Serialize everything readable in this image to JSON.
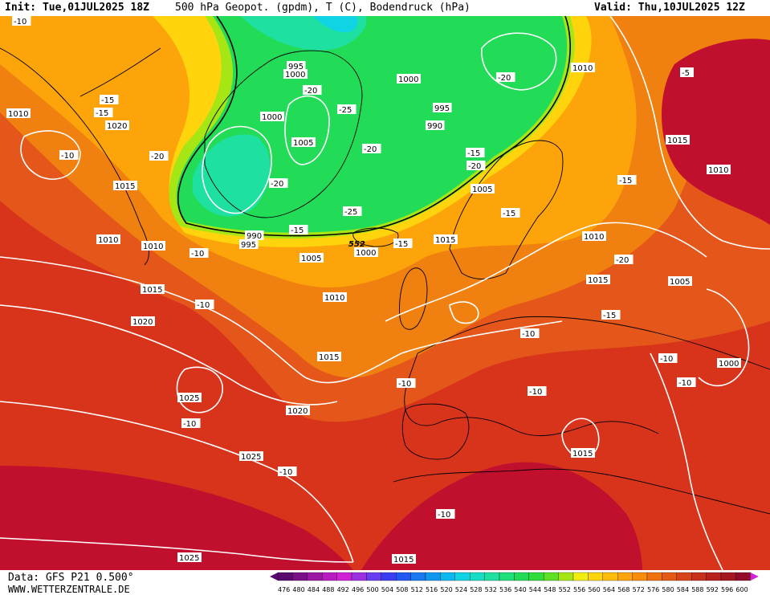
{
  "header": {
    "init": "Init: Tue,01JUL2025 18Z",
    "title": "500 hPa Geopot. (gpdm), T (C), Bodendruck (hPa)",
    "valid": "Valid: Thu,10JUL2025 12Z"
  },
  "footer": {
    "source": "Data: GFS P21 0.500°",
    "website": "WWW.WETTERZENTRALE.DE"
  },
  "legend": {
    "values": [
      "476",
      "480",
      "484",
      "488",
      "492",
      "496",
      "500",
      "504",
      "508",
      "512",
      "516",
      "520",
      "524",
      "528",
      "532",
      "536",
      "540",
      "544",
      "548",
      "552",
      "556",
      "560",
      "564",
      "568",
      "572",
      "576",
      "580",
      "584",
      "588",
      "592",
      "596",
      "600"
    ],
    "colors": [
      "#5a0a6e",
      "#7a1088",
      "#9a18a4",
      "#b81cc0",
      "#d022d6",
      "#9b30e0",
      "#6a3cf0",
      "#3c3cf2",
      "#2258f0",
      "#1a78f0",
      "#1098f0",
      "#0cb8ee",
      "#10d4e4",
      "#18dcc4",
      "#1ee0a0",
      "#20e07c",
      "#22dc58",
      "#30dc3a",
      "#5ee024",
      "#a6e614",
      "#f0ee10",
      "#ffd40c",
      "#ffbc0a",
      "#fca40a",
      "#f88c0c",
      "#f0720e",
      "#e45a12",
      "#d84418",
      "#c8301c",
      "#b8201e",
      "#a41620",
      "#900c2a"
    ]
  },
  "map": {
    "contour_552_label": "552",
    "pressure_labels": [
      "1010",
      "1020",
      "1015",
      "1010",
      "1010",
      "1015",
      "1020",
      "1025",
      "1025",
      "1025",
      "1020",
      "1015",
      "1010",
      "1005",
      "1000",
      "990",
      "995",
      "1000",
      "995",
      "1000",
      "1005",
      "1000",
      "995",
      "990",
      "1005",
      "1015",
      "1010",
      "1015",
      "1005",
      "1015",
      "1010",
      "1010",
      "1000",
      "1015",
      "1015",
      "552"
    ],
    "temp_labels": [
      "-10",
      "-15",
      "-15",
      "-20",
      "-10",
      "-10",
      "-10",
      "-10",
      "-10",
      "-20",
      "-25",
      "-20",
      "-20",
      "-15",
      "-15",
      "-15",
      "-20",
      "-20",
      "-15",
      "-20",
      "-25",
      "-15",
      "-10",
      "-10",
      "-10",
      "-15",
      "-10",
      "-10",
      "-5",
      "-10"
    ]
  },
  "colors": {
    "very_high": "#c0102e",
    "high": "#d8341c",
    "orange_red": "#e4561a",
    "orange": "#f0800f",
    "amber": "#fca40a",
    "yellow": "#ffd40c",
    "lime": "#a6e614",
    "green": "#22dc58",
    "teal": "#1ee0a0",
    "cyan": "#10d4e4"
  }
}
